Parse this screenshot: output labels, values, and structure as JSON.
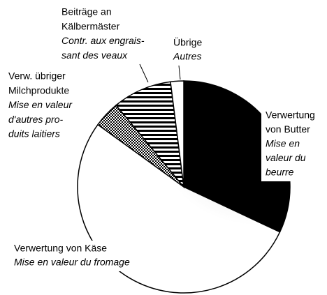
{
  "chart_data": {
    "type": "pie",
    "categories": [
      {
        "lines": [
          "Verwertung",
          "von Butter"
        ],
        "translation": [
          "Mise en",
          "valeur du",
          "beurre"
        ]
      },
      {
        "lines": [
          "Verwertung von Käse"
        ],
        "translation": [
          "Mise en valeur du fromage"
        ]
      },
      {
        "lines": [
          "Verw. übriger",
          "Milchprodukte"
        ],
        "translation": [
          "Mise en valeur",
          "d'autres pro-",
          "duits laitiers"
        ]
      },
      {
        "lines": [
          "Beiträge an",
          "Kälbermäster"
        ],
        "translation": [
          "Contr. aux engrais-",
          "sant des veaux"
        ]
      },
      {
        "lines": [
          "Übrige"
        ],
        "translation": [
          "Autres"
        ]
      }
    ],
    "values": [
      32,
      53,
      4,
      9,
      2
    ],
    "colors": [
      "#000000",
      "url(#grain)",
      "url(#checker)",
      "url(#stripes)",
      "#ffffff"
    ],
    "start_angle": 0,
    "direction": "clockwise"
  }
}
